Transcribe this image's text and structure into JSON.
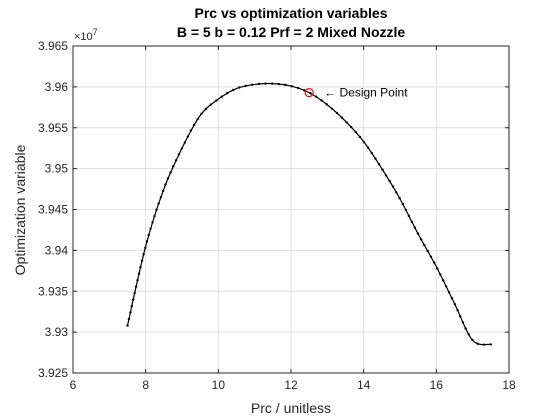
{
  "chart_data": {
    "type": "line",
    "title_line1": "Prc vs optimization variables",
    "title_line2": "B = 5 b = 0.12 Prf = 2 Mixed Nozzle",
    "xlabel": "Prc / unitless",
    "ylabel": "Optimization variable",
    "y_exponent_base": "×10",
    "y_exponent_power": "7",
    "xlim": [
      6,
      18
    ],
    "ylim": [
      3.925,
      3.965
    ],
    "xticks": [
      "6",
      "8",
      "10",
      "12",
      "14",
      "16",
      "18"
    ],
    "yticks": [
      "3.925",
      "3.93",
      "3.935",
      "3.94",
      "3.945",
      "3.95",
      "3.955",
      "3.96",
      "3.965"
    ],
    "grid": true,
    "series": [
      {
        "color": "#000000",
        "marker": "dot",
        "x": [
          7.5,
          8.0,
          8.5,
          9.0,
          9.5,
          10.0,
          10.5,
          11.0,
          11.5,
          12.0,
          12.5,
          13.0,
          13.5,
          14.0,
          14.5,
          15.0,
          15.5,
          16.0,
          16.5,
          17.0,
          17.5
        ],
        "y": [
          3.9308,
          3.9405,
          3.9475,
          3.9525,
          3.9565,
          3.9585,
          3.9598,
          3.9603,
          3.9604,
          3.9601,
          3.9593,
          3.9578,
          3.9558,
          3.9533,
          3.95,
          3.9463,
          3.942,
          3.938,
          3.9335,
          3.929,
          3.9285
        ]
      }
    ],
    "annotation": {
      "label": "← Design Point",
      "x": 12.5,
      "y": 3.9593,
      "marker_color": "#ff0000"
    }
  }
}
